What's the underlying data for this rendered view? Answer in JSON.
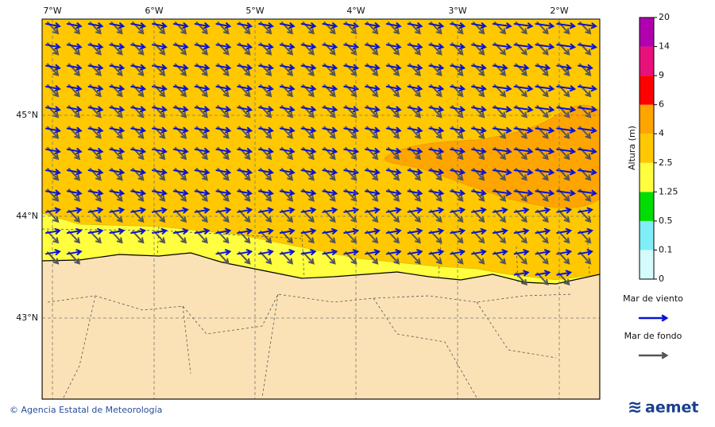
{
  "map": {
    "lon_labels": [
      "7°W",
      "6°W",
      "5°W",
      "4°W",
      "3°W",
      "2°W"
    ],
    "lat_labels": [
      "45°N",
      "44°N",
      "43°N"
    ],
    "colorbar": {
      "title": "Altura (m)",
      "levels": [
        0,
        0.1,
        0.5,
        1.25,
        2.5,
        4,
        6,
        9,
        14,
        20
      ],
      "colors": [
        "#d4fcfc",
        "#80eef6",
        "#00dd00",
        "#ffff40",
        "#ffc800",
        "#ffa500",
        "#ff0000",
        "#e8107a",
        "#b000b0"
      ]
    },
    "legend": [
      {
        "name": "Mar de viento",
        "color": "#0a14d2"
      },
      {
        "name": "Mar de fondo",
        "color": "#555555"
      }
    ],
    "footer": "© Agencia Estatal de Meteorología",
    "logo": "aemet"
  }
}
